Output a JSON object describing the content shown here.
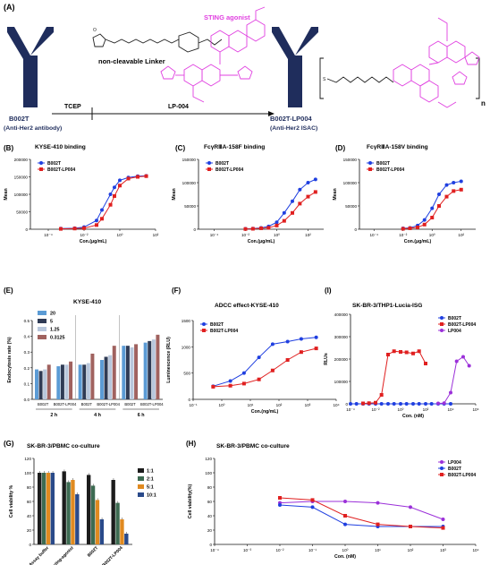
{
  "panel_labels": {
    "A": "(A)",
    "B": "(B)",
    "C": "(C)",
    "D": "(D)",
    "E": "(E)",
    "F": "(F)",
    "I": "(I)",
    "G": "(G)",
    "H": "(H)"
  },
  "scheme": {
    "antibody_name": "B002T",
    "antibody_desc": "(Anti-Her2 antibody)",
    "reagent": "TCEP",
    "payload_step": "LP-004",
    "linker_label": "non-cleavable Linker",
    "agonist_label": "STING agonist",
    "product_name": "B002T-LP004",
    "product_desc": "(Anti-Her2 ISAC)",
    "repeat_n": "n",
    "colors": {
      "antibody": "#1f2d5c",
      "agonist": "#e040e0",
      "linker": "#222222"
    }
  },
  "chart_data": [
    {
      "id": "B",
      "type": "line",
      "title": "KYSE-410 binding",
      "xlabel": "Con.(μg/mL)",
      "ylabel": "Mean",
      "xscale": "log",
      "xticks": [
        "10⁻⁴",
        "10⁻²",
        "10⁰",
        "10²"
      ],
      "yticks": [
        "0",
        "50000",
        "100000",
        "150000",
        "200000"
      ],
      "ylim": [
        0,
        200000
      ],
      "legend": "top-left",
      "series": [
        {
          "name": "B002T",
          "color": "#1f3fe0",
          "marker": "circle",
          "x": [
            0.0005,
            0.003,
            0.01,
            0.05,
            0.1,
            0.3,
            0.5,
            1,
            3,
            10,
            30
          ],
          "y": [
            2000,
            3000,
            6000,
            25000,
            55000,
            100000,
            120000,
            140000,
            148000,
            152000,
            153000
          ]
        },
        {
          "name": "B002T-LP004",
          "color": "#e02020",
          "marker": "square",
          "x": [
            0.0005,
            0.003,
            0.01,
            0.05,
            0.1,
            0.3,
            0.5,
            1,
            3,
            10,
            30
          ],
          "y": [
            1000,
            2000,
            3000,
            12000,
            30000,
            70000,
            95000,
            125000,
            145000,
            150000,
            152000
          ]
        }
      ]
    },
    {
      "id": "C",
      "type": "line",
      "title": "FcγRⅢA-158F binding",
      "xlabel": "Con.(μg/mL)",
      "ylabel": "Mean",
      "xscale": "log",
      "xticks": [
        "10⁻⁴",
        "10⁻²",
        "10⁰",
        "10²"
      ],
      "yticks": [
        "0",
        "50000",
        "100000",
        "150000"
      ],
      "ylim": [
        0,
        150000
      ],
      "legend": "top-left",
      "series": [
        {
          "name": "B002T",
          "color": "#1f3fe0",
          "marker": "circle",
          "x": [
            0.01,
            0.03,
            0.1,
            0.3,
            1,
            3,
            10,
            30,
            100,
            300
          ],
          "y": [
            1000,
            1500,
            3000,
            6000,
            15000,
            35000,
            60000,
            85000,
            100000,
            107000
          ]
        },
        {
          "name": "B002T-LP004",
          "color": "#e02020",
          "marker": "square",
          "x": [
            0.01,
            0.03,
            0.1,
            0.3,
            1,
            3,
            10,
            30,
            100,
            300
          ],
          "y": [
            500,
            1000,
            2000,
            3000,
            8000,
            18000,
            35000,
            55000,
            70000,
            80000
          ]
        }
      ]
    },
    {
      "id": "D",
      "type": "line",
      "title": "FcγRⅢA-158V binding",
      "xlabel": "Con.(μg/mL)",
      "ylabel": "Mean",
      "xscale": "log",
      "xticks": [
        "10⁻⁴",
        "10⁻²",
        "10⁰",
        "10²"
      ],
      "yticks": [
        "0",
        "50000",
        "100000",
        "150000"
      ],
      "ylim": [
        0,
        150000
      ],
      "legend": "top-left",
      "series": [
        {
          "name": "B002T",
          "color": "#1f3fe0",
          "marker": "circle",
          "x": [
            0.01,
            0.03,
            0.1,
            0.3,
            1,
            3,
            10,
            30,
            100
          ],
          "y": [
            2000,
            3000,
            8000,
            20000,
            45000,
            75000,
            95000,
            100000,
            103000
          ]
        },
        {
          "name": "B002T-LP004",
          "color": "#e02020",
          "marker": "square",
          "x": [
            0.01,
            0.03,
            0.1,
            0.3,
            1,
            3,
            10,
            30,
            100
          ],
          "y": [
            1000,
            2000,
            4000,
            10000,
            25000,
            50000,
            70000,
            82000,
            85000
          ]
        }
      ]
    },
    {
      "id": "E",
      "type": "bar",
      "title": "KYSE-410",
      "ylabel": "Endocytosis rate (%)",
      "yticks": [
        "0.0",
        "0.1",
        "0.2",
        "0.3",
        "0.4",
        "0.5"
      ],
      "ylim": [
        0,
        0.5
      ],
      "legend": "top-left",
      "groups": [
        "B002T",
        "B002T-LP004",
        "B002T",
        "B002T-LP004",
        "B002T",
        "B002T-LP004"
      ],
      "time_labels": [
        "2 h",
        "4 h",
        "6 h"
      ],
      "series": [
        {
          "name": "20",
          "color": "#5b9bd5",
          "values": [
            0.19,
            0.21,
            0.22,
            0.25,
            0.34,
            0.36
          ]
        },
        {
          "name": "5",
          "color": "#2f3b55",
          "values": [
            0.18,
            0.22,
            0.22,
            0.27,
            0.34,
            0.37
          ]
        },
        {
          "name": "1.25",
          "color": "#b8c7dc",
          "values": [
            0.19,
            0.22,
            0.23,
            0.28,
            0.33,
            0.38
          ]
        },
        {
          "name": "0.3125",
          "color": "#a0625f",
          "values": [
            0.22,
            0.24,
            0.29,
            0.34,
            0.35,
            0.41
          ]
        }
      ]
    },
    {
      "id": "F",
      "type": "line",
      "title": "ADCC effect-KYSE-410",
      "xlabel": "Con.(ng/mL)",
      "ylabel": "Luminescence (RLU)",
      "xscale": "log",
      "xticks": [
        "10⁻¹",
        "10⁰",
        "10¹",
        "10²",
        "10³",
        "10⁴"
      ],
      "yticks": [
        "0",
        "500",
        "1000",
        "1500"
      ],
      "ylim": [
        0,
        1500
      ],
      "legend": "top-left",
      "series": [
        {
          "name": "B002T",
          "color": "#1f3fe0",
          "marker": "circle",
          "x": [
            0.5,
            2,
            6,
            20,
            60,
            200,
            600,
            2000
          ],
          "y": [
            250,
            350,
            500,
            800,
            1050,
            1100,
            1150,
            1180
          ]
        },
        {
          "name": "B002T-LP004",
          "color": "#e02020",
          "marker": "square",
          "x": [
            0.5,
            2,
            6,
            20,
            60,
            200,
            600,
            2000
          ],
          "y": [
            240,
            260,
            300,
            380,
            550,
            750,
            900,
            970
          ]
        }
      ]
    },
    {
      "id": "I",
      "type": "line",
      "title": "SK-BR-3/THP1-Lucia-ISG",
      "xlabel": "Con. (nM)",
      "ylabel": "RLUs",
      "xscale": "log",
      "xticks": [
        "10⁻⁴",
        "10⁻²",
        "10⁰",
        "10²",
        "10⁴",
        "10⁶"
      ],
      "yticks": [
        "0",
        "100000",
        "200000",
        "300000",
        "400000"
      ],
      "ylim": [
        0,
        400000
      ],
      "legend": "top-right",
      "series": [
        {
          "name": "B002T",
          "color": "#1f3fe0",
          "marker": "circle",
          "x": [
            0.0001,
            0.0003,
            0.001,
            0.003,
            0.01,
            0.03,
            0.1,
            0.3,
            1,
            3,
            10,
            30,
            100,
            300,
            1000,
            3000,
            10000
          ],
          "y": [
            0,
            0,
            0,
            0,
            0,
            0,
            0,
            0,
            0,
            0,
            0,
            0,
            0,
            0,
            0,
            0,
            0
          ]
        },
        {
          "name": "B002T-LP004",
          "color": "#e02020",
          "marker": "square",
          "x": [
            0.001,
            0.003,
            0.01,
            0.03,
            0.1,
            0.3,
            1,
            3,
            10,
            30,
            100
          ],
          "y": [
            2000,
            3000,
            5000,
            40000,
            220000,
            235000,
            232000,
            230000,
            225000,
            235000,
            180000
          ]
        },
        {
          "name": "LP004",
          "color": "#9b30d9",
          "marker": "circle",
          "x": [
            1000,
            3000,
            10000,
            30000,
            100000,
            300000
          ],
          "y": [
            2000,
            3000,
            50000,
            190000,
            210000,
            170000
          ]
        }
      ]
    },
    {
      "id": "G",
      "type": "bar",
      "title": "SK-BR-3/PBMC co-culture",
      "ylabel": "Cell viability %",
      "yticks": [
        "0",
        "20",
        "40",
        "60",
        "80",
        "100",
        "120"
      ],
      "ylim": [
        0,
        120
      ],
      "legend": "right",
      "categories": [
        "Assay buffer",
        "sting-agonist",
        "B002T",
        "B002T-LP004"
      ],
      "series": [
        {
          "name": "1:1",
          "color": "#1c1c1c",
          "values": [
            100,
            102,
            97,
            90
          ]
        },
        {
          "name": "2:1",
          "color": "#3d6b52",
          "values": [
            100,
            87,
            82,
            58
          ]
        },
        {
          "name": "5:1",
          "color": "#e08a20",
          "values": [
            100,
            90,
            62,
            35
          ]
        },
        {
          "name": "10:1",
          "color": "#2a4a8a",
          "values": [
            100,
            70,
            35,
            15
          ]
        }
      ]
    },
    {
      "id": "H",
      "type": "line",
      "title": "SK-BR-3/PBMC co-culture",
      "xlabel": "Con. (nM)",
      "ylabel": "Cell viability(%)",
      "xscale": "log",
      "xticks": [
        "10⁻⁴",
        "10⁻³",
        "10⁻²",
        "10⁻¹",
        "10⁰",
        "10¹",
        "10²",
        "10³",
        "10⁴"
      ],
      "yticks": [
        "0",
        "20",
        "40",
        "60",
        "80",
        "100",
        "120"
      ],
      "ylim": [
        0,
        120
      ],
      "legend": "top-right",
      "series": [
        {
          "name": "LP004",
          "color": "#9b30d9",
          "marker": "circle",
          "x": [
            0.01,
            0.1,
            1,
            10,
            100,
            1000
          ],
          "y": [
            58,
            60,
            60,
            58,
            52,
            35
          ]
        },
        {
          "name": "B002T",
          "color": "#1f3fe0",
          "marker": "circle",
          "x": [
            0.01,
            0.1,
            1,
            10,
            100,
            1000
          ],
          "y": [
            55,
            52,
            28,
            25,
            25,
            25
          ]
        },
        {
          "name": "B002T-LP004",
          "color": "#e02020",
          "marker": "square",
          "x": [
            0.01,
            0.1,
            1,
            10,
            100,
            1000
          ],
          "y": [
            65,
            62,
            40,
            28,
            25,
            23
          ]
        }
      ]
    }
  ]
}
